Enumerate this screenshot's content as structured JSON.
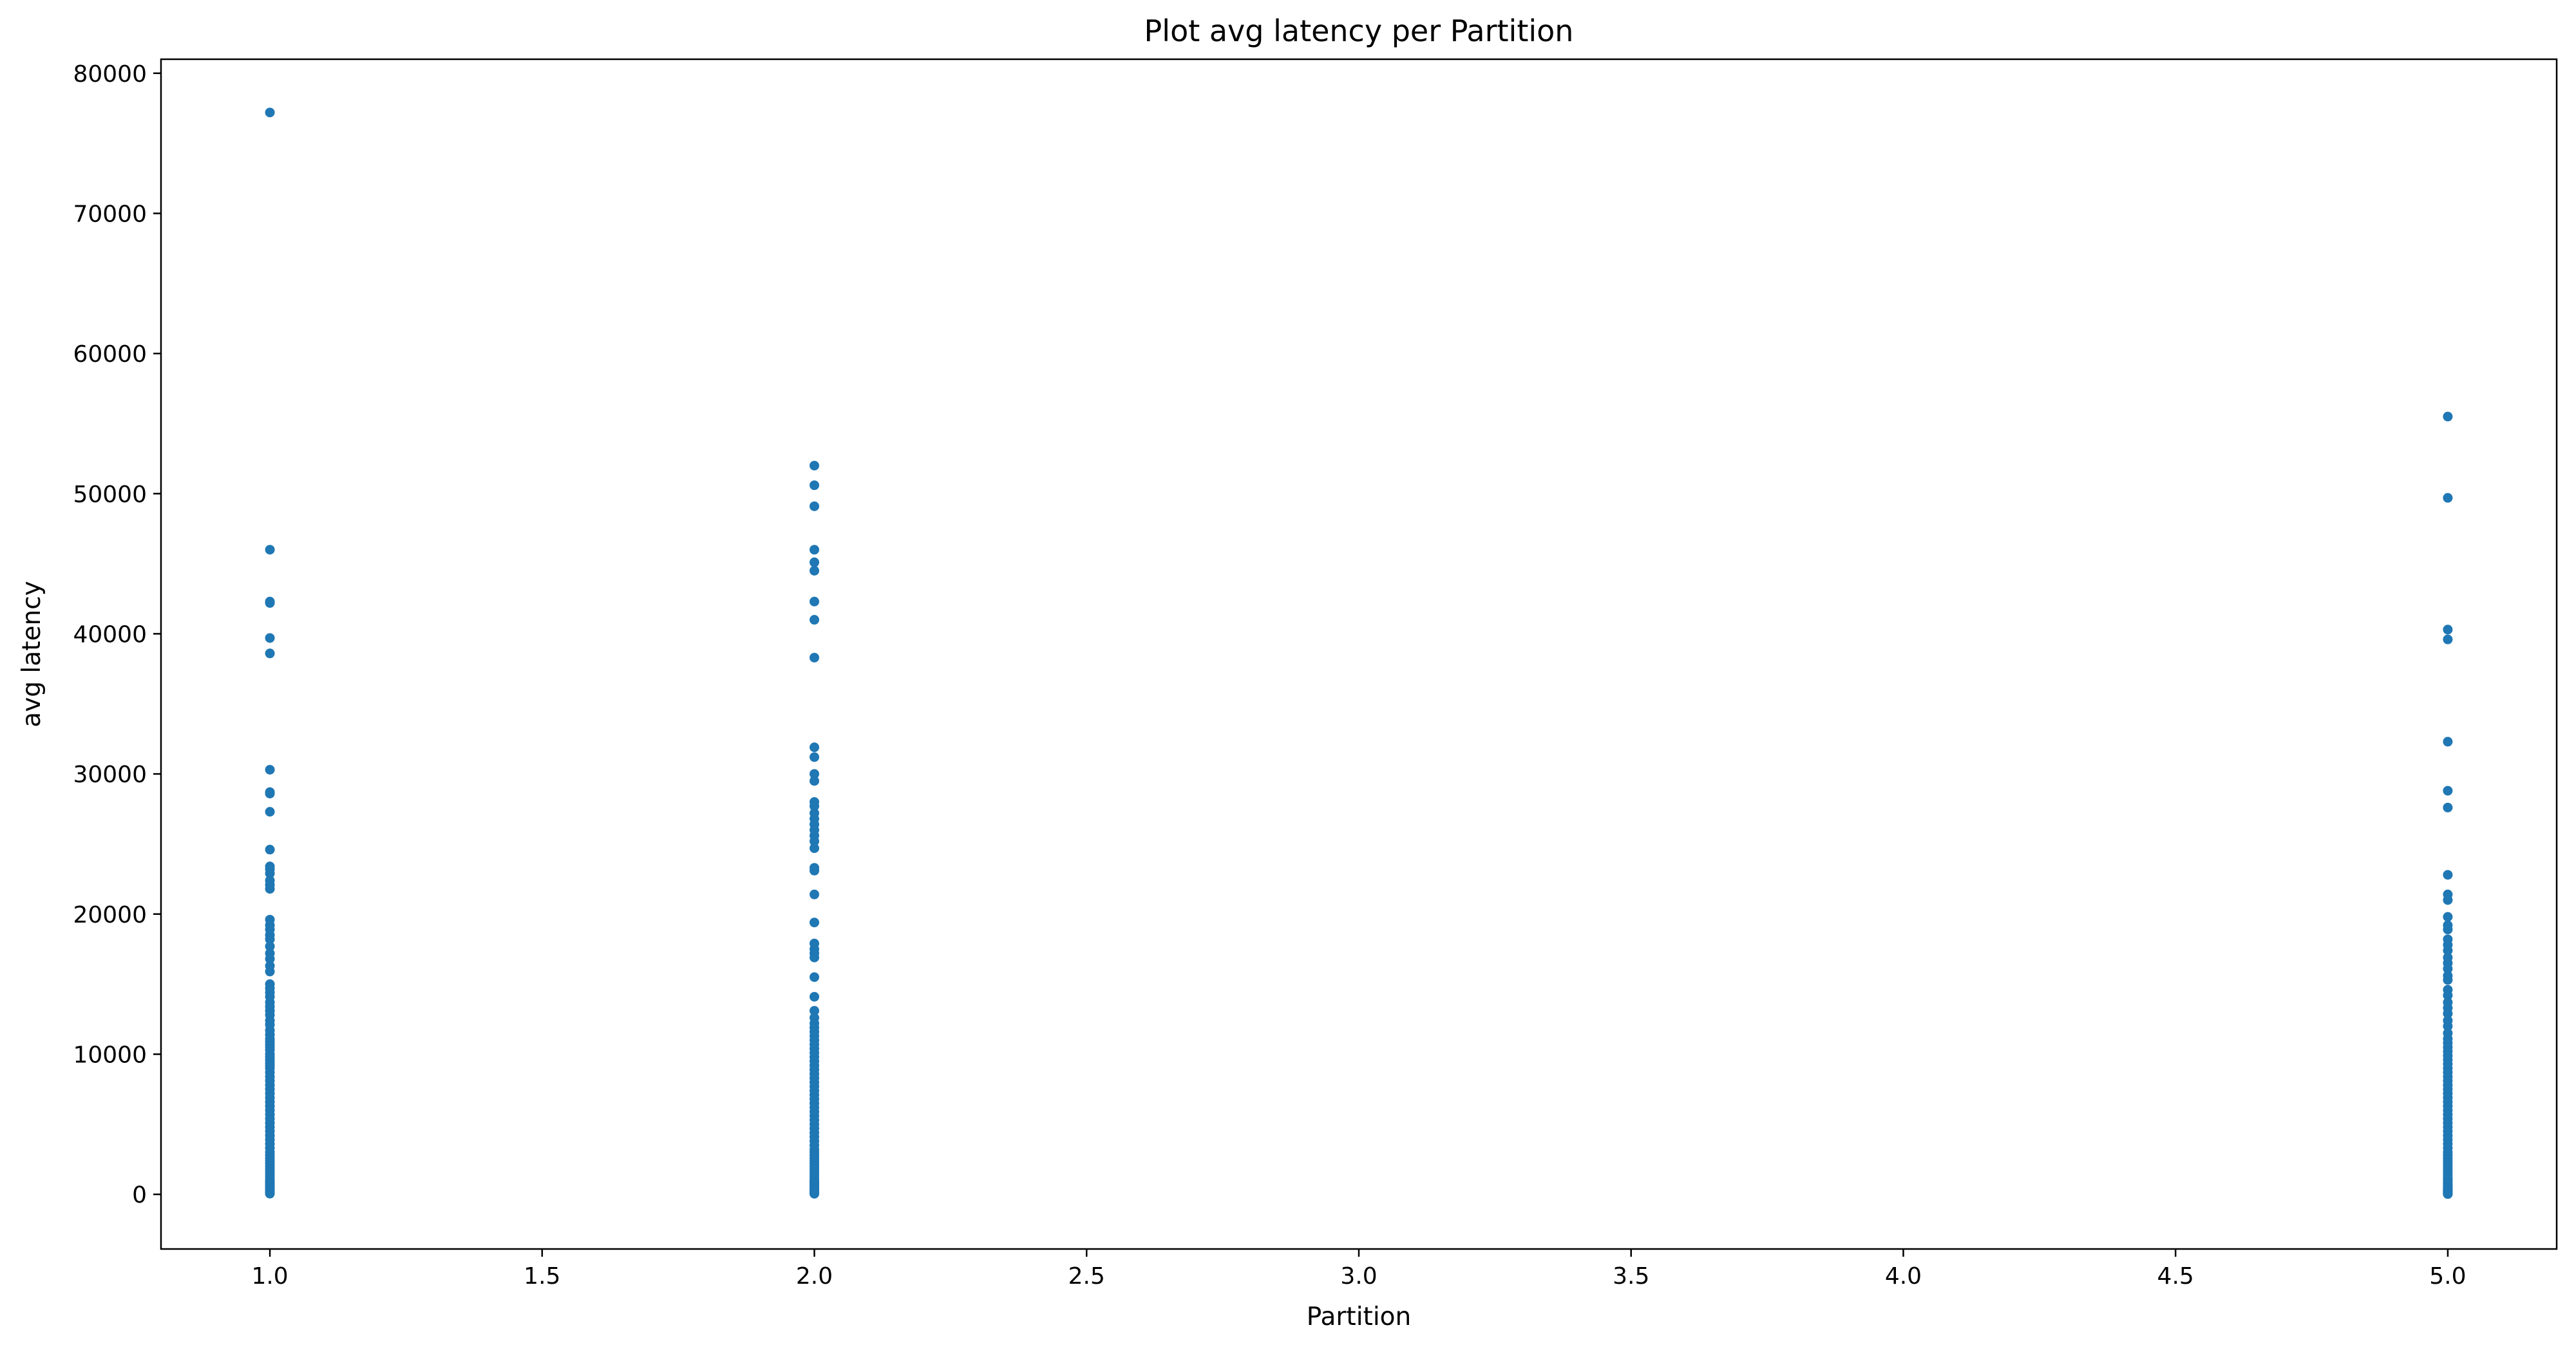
{
  "chart_data": {
    "type": "scatter",
    "title": "Plot avg latency per Partition",
    "xlabel": "Partition",
    "ylabel": "avg latency",
    "xlim": [
      0.8,
      5.2
    ],
    "ylim": [
      -3900,
      81000
    ],
    "xticks": [
      1.0,
      1.5,
      2.0,
      2.5,
      3.0,
      3.5,
      4.0,
      4.5,
      5.0
    ],
    "xtick_labels": [
      "1.0",
      "1.5",
      "2.0",
      "2.5",
      "3.0",
      "3.5",
      "4.0",
      "4.5",
      "5.0"
    ],
    "yticks": [
      0,
      10000,
      20000,
      30000,
      40000,
      50000,
      60000,
      70000,
      80000
    ],
    "ytick_labels": [
      "0",
      "10000",
      "20000",
      "30000",
      "40000",
      "50000",
      "60000",
      "70000",
      "80000"
    ],
    "grid": false,
    "legend": "none",
    "color": "#1f77b4",
    "series": [
      {
        "x": [
          1,
          1,
          1,
          1,
          1,
          1,
          1,
          1,
          1,
          1,
          1,
          1,
          1,
          1,
          1,
          1,
          1,
          1,
          1,
          1,
          1,
          1,
          1,
          1,
          1,
          1,
          1,
          1,
          1,
          1,
          1,
          1,
          1,
          1,
          1,
          1,
          1,
          1,
          1,
          1,
          1,
          1,
          1,
          1,
          1,
          1,
          1,
          1,
          1,
          1,
          1,
          1,
          1,
          1,
          1,
          1,
          1,
          1,
          1,
          1,
          1,
          1,
          1,
          1,
          1,
          1,
          1,
          1,
          1,
          1,
          1,
          1,
          1,
          1,
          1,
          1,
          1,
          1,
          1,
          1,
          1,
          1,
          1,
          1,
          1,
          1,
          1,
          1,
          1,
          1
        ],
        "y": [
          77200,
          46000,
          42300,
          42200,
          39700,
          38600,
          30300,
          28700,
          28600,
          27300,
          24600,
          23400,
          23200,
          22900,
          22400,
          22100,
          21800,
          19600,
          19200,
          18900,
          18500,
          18200,
          17700,
          17200,
          16800,
          16300,
          15900,
          15000,
          14700,
          14400,
          14100,
          13700,
          13400,
          13100,
          12800,
          12400,
          12100,
          11700,
          11400,
          11100,
          10900,
          10700,
          10500,
          10300,
          10000,
          9800,
          9600,
          9400,
          9200,
          9000,
          8700,
          8400,
          8100,
          7800,
          7500,
          7200,
          6900,
          6600,
          6300,
          6000,
          5700,
          5400,
          5100,
          4800,
          4500,
          4200,
          3900,
          3600,
          3300,
          3000,
          2800,
          2600,
          2400,
          2200,
          2000,
          1800,
          1600,
          1400,
          1200,
          1000,
          900,
          800,
          700,
          600,
          500,
          400,
          300,
          200,
          100,
          50
        ]
      },
      {
        "x": [
          2,
          2,
          2,
          2,
          2,
          2,
          2,
          2,
          2,
          2,
          2,
          2,
          2,
          2,
          2,
          2,
          2,
          2,
          2,
          2,
          2,
          2,
          2,
          2,
          2,
          2,
          2,
          2,
          2,
          2,
          2,
          2,
          2,
          2,
          2,
          2,
          2,
          2,
          2,
          2,
          2,
          2,
          2,
          2,
          2,
          2,
          2,
          2,
          2,
          2,
          2,
          2,
          2,
          2,
          2,
          2,
          2,
          2,
          2,
          2,
          2,
          2,
          2,
          2,
          2,
          2,
          2,
          2,
          2,
          2,
          2,
          2,
          2,
          2,
          2,
          2,
          2,
          2,
          2,
          2,
          2,
          2,
          2,
          2,
          2,
          2,
          2,
          2,
          2,
          2
        ],
        "y": [
          52000,
          50600,
          49100,
          46000,
          45100,
          44500,
          42300,
          41000,
          38300,
          31900,
          31200,
          30000,
          29500,
          28000,
          27700,
          27200,
          26800,
          26400,
          26000,
          25600,
          25200,
          24700,
          23300,
          23100,
          21400,
          19400,
          17900,
          17500,
          17200,
          16900,
          15500,
          14100,
          13100,
          12600,
          12200,
          11900,
          11600,
          11300,
          11000,
          10700,
          10400,
          10100,
          9800,
          9500,
          9200,
          8900,
          8600,
          8300,
          8000,
          7700,
          7400,
          7100,
          6800,
          6500,
          6200,
          5900,
          5600,
          5300,
          5000,
          4700,
          4400,
          4100,
          3800,
          3500,
          3200,
          3000,
          2800,
          2600,
          2400,
          2200,
          2000,
          1800,
          1600,
          1400,
          1200,
          1000,
          900,
          800,
          700,
          600,
          500,
          400,
          300,
          250,
          200,
          150,
          100,
          80,
          60,
          40
        ]
      },
      {
        "x": [
          5,
          5,
          5,
          5,
          5,
          5,
          5,
          5,
          5,
          5,
          5,
          5,
          5,
          5,
          5,
          5,
          5,
          5,
          5,
          5,
          5,
          5,
          5,
          5,
          5,
          5,
          5,
          5,
          5,
          5,
          5,
          5,
          5,
          5,
          5,
          5,
          5,
          5,
          5,
          5,
          5,
          5,
          5,
          5,
          5,
          5,
          5,
          5,
          5,
          5,
          5,
          5,
          5,
          5,
          5,
          5,
          5,
          5,
          5,
          5,
          5,
          5,
          5,
          5,
          5,
          5,
          5,
          5,
          5,
          5,
          5,
          5,
          5,
          5,
          5,
          5,
          5,
          5,
          5,
          5,
          5,
          5,
          5,
          5,
          5,
          5,
          5,
          5,
          5,
          5
        ],
        "y": [
          55500,
          49700,
          40300,
          39600,
          32300,
          28800,
          27600,
          22800,
          21400,
          21000,
          19800,
          19200,
          18900,
          18200,
          17800,
          17400,
          16900,
          16500,
          16100,
          15600,
          15300,
          14600,
          14200,
          13700,
          13300,
          12900,
          12400,
          12000,
          11500,
          11100,
          10800,
          10500,
          10200,
          9900,
          9600,
          9300,
          9000,
          8700,
          8400,
          8100,
          7800,
          7500,
          7200,
          6900,
          6600,
          6300,
          6000,
          5700,
          5400,
          5100,
          4800,
          4500,
          4200,
          3900,
          3600,
          3300,
          3000,
          2800,
          2600,
          2400,
          2200,
          2000,
          1800,
          1600,
          1400,
          1200,
          1100,
          1000,
          900,
          800,
          700,
          600,
          550,
          500,
          450,
          400,
          350,
          300,
          260,
          220,
          190,
          160,
          130,
          110,
          90,
          70,
          50,
          40,
          30,
          20
        ]
      }
    ]
  }
}
